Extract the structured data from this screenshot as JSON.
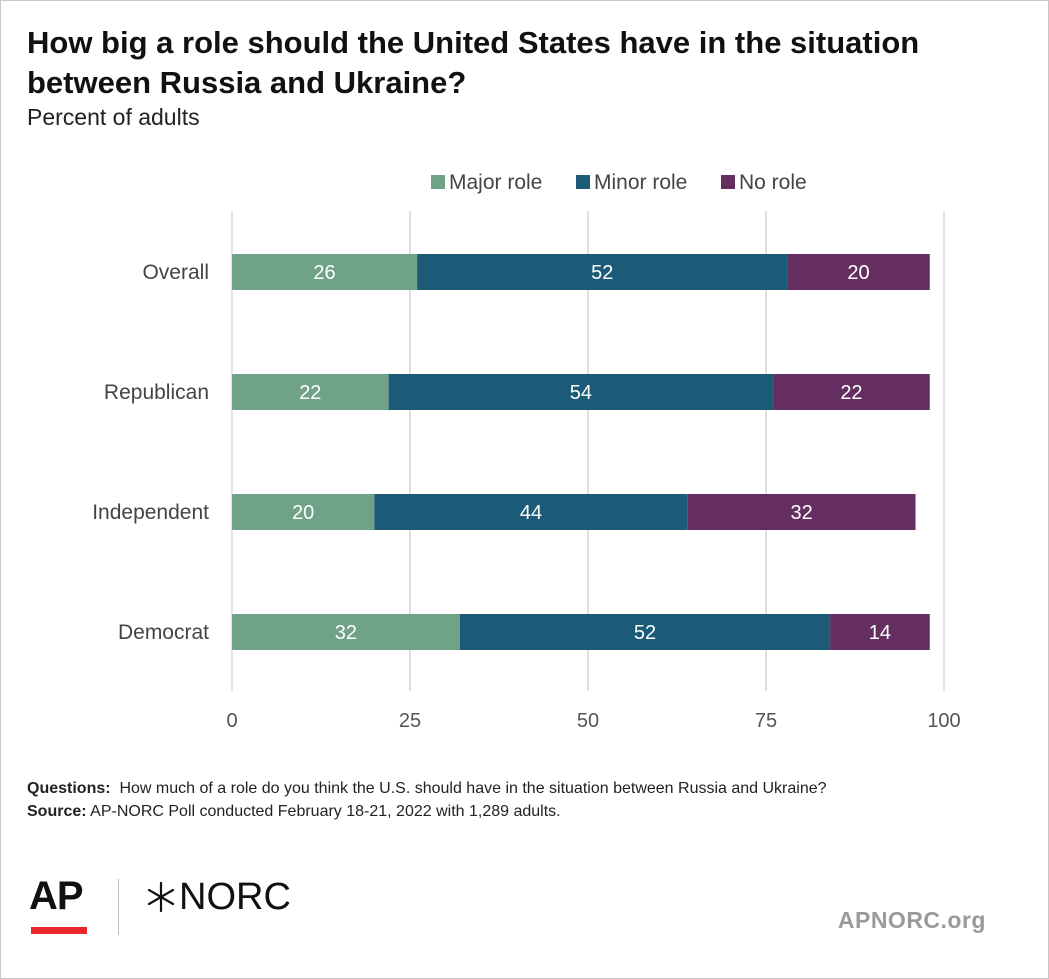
{
  "title": "How big a role should the United States have in the situation between Russia and Ukraine?",
  "subtitle": "Percent of adults",
  "chart_data": {
    "type": "bar",
    "orientation": "horizontal",
    "stacked": true,
    "categories": [
      "Overall",
      "Republican",
      "Independent",
      "Democrat"
    ],
    "series": [
      {
        "name": "Major role",
        "color": "#6fa287",
        "values": [
          26,
          22,
          20,
          32
        ]
      },
      {
        "name": "Minor role",
        "color": "#1b5b78",
        "values": [
          52,
          54,
          44,
          52
        ]
      },
      {
        "name": "No role",
        "color": "#642f60",
        "values": [
          20,
          22,
          32,
          14
        ]
      }
    ],
    "xlim": [
      0,
      100
    ],
    "xticks": [
      0,
      25,
      50,
      75,
      100
    ],
    "grid": "vertical",
    "legend_position": "top-right"
  },
  "notes": {
    "questions_label": "Questions:",
    "questions_text": "How much of a role do you think the U.S. should have in the situation between Russia and Ukraine?",
    "source_label": "Source:",
    "source_text": "AP-NORC Poll conducted February 18-21, 2022 with 1,289 adults."
  },
  "logos": {
    "ap": "AP",
    "norc": "NORC",
    "site": "APNORC.org"
  },
  "colors": {
    "ap_red": "#e8262c"
  }
}
